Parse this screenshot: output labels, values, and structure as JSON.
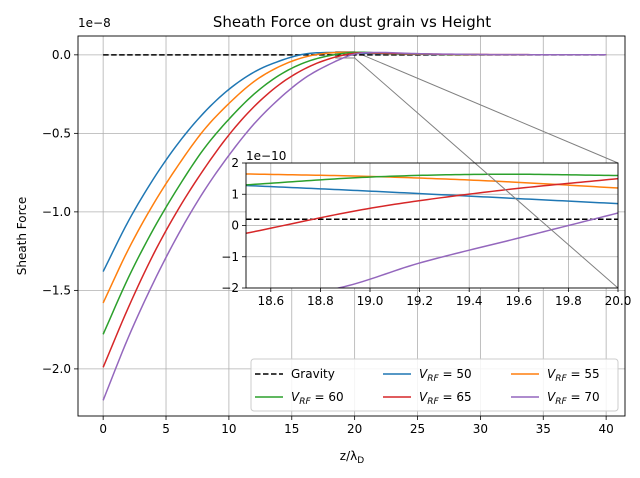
{
  "chart_data": [
    {
      "type": "line",
      "title": "Sheath Force on dust grain vs Height",
      "xlabel": "z/λD",
      "ylabel": "Sheath Force",
      "offset_text": "1e−8",
      "xlim": [
        -2,
        41.5
      ],
      "ylim": [
        -2.3,
        0.12
      ],
      "xticks": [
        0,
        5,
        10,
        15,
        20,
        25,
        30,
        35,
        40
      ],
      "xtick_labels": [
        "0",
        "5",
        "10",
        "15",
        "20",
        "25",
        "30",
        "35",
        "40"
      ],
      "yticks": [
        0,
        -0.5,
        -1.0,
        -1.5,
        -2.0
      ],
      "ytick_labels": [
        "0.0",
        "−0.5",
        "−1.0",
        "−1.5",
        "−2.0"
      ],
      "grid": true,
      "legend": {
        "placement": "lower-right",
        "columns": 3
      },
      "series": [
        {
          "name": "Gravity",
          "label_main": "Gravity",
          "label_sub": "",
          "label_tail": "",
          "color": "#000000",
          "dashed": true,
          "x": [
            0,
            40
          ],
          "y": [
            0.0,
            0.0
          ]
        },
        {
          "name": "V_RF = 50",
          "label_main": "V",
          "label_sub": "RF",
          "label_tail": " = 50",
          "color": "#1f77b4",
          "dashed": false,
          "x": [
            0,
            2,
            4,
            6,
            8,
            10,
            12,
            14,
            16,
            18,
            20,
            22,
            24,
            26,
            28,
            30,
            34,
            38,
            40
          ],
          "y": [
            -1.38,
            -1.06,
            -0.79,
            -0.56,
            -0.37,
            -0.22,
            -0.11,
            -0.04,
            0.005,
            0.015,
            0.012,
            0.008,
            0.005,
            0.003,
            0.002,
            0.001,
            0.0005,
            0.0003,
            0.0002
          ]
        },
        {
          "name": "V_RF = 55",
          "label_main": "V",
          "label_sub": "RF",
          "label_tail": " = 55",
          "color": "#ff7f0e",
          "dashed": false,
          "x": [
            0,
            2,
            4,
            6,
            8,
            10,
            12,
            14,
            16,
            18,
            20,
            22,
            24,
            26,
            28,
            30,
            34,
            38,
            40
          ],
          "y": [
            -1.58,
            -1.24,
            -0.95,
            -0.7,
            -0.48,
            -0.31,
            -0.17,
            -0.075,
            -0.015,
            0.012,
            0.015,
            0.01,
            0.006,
            0.004,
            0.002,
            0.001,
            0.0005,
            0.0003,
            0.0002
          ]
        },
        {
          "name": "V_RF = 60",
          "label_main": "V",
          "label_sub": "RF",
          "label_tail": " = 60",
          "color": "#2ca02c",
          "dashed": false,
          "x": [
            0,
            2,
            4,
            6,
            8,
            10,
            12,
            14,
            16,
            18,
            20,
            22,
            24,
            26,
            28,
            30,
            34,
            38,
            40
          ],
          "y": [
            -1.78,
            -1.42,
            -1.11,
            -0.84,
            -0.6,
            -0.41,
            -0.25,
            -0.13,
            -0.05,
            -0.005,
            0.016,
            0.012,
            0.007,
            0.004,
            0.002,
            0.001,
            0.0005,
            0.0003,
            0.0002
          ]
        },
        {
          "name": "V_RF = 65",
          "label_main": "V",
          "label_sub": "RF",
          "label_tail": " = 65",
          "color": "#d62728",
          "dashed": false,
          "x": [
            0,
            2,
            4,
            6,
            8,
            10,
            12,
            14,
            16,
            18,
            20,
            22,
            24,
            26,
            28,
            30,
            34,
            38,
            40
          ],
          "y": [
            -1.99,
            -1.61,
            -1.27,
            -0.98,
            -0.73,
            -0.51,
            -0.33,
            -0.19,
            -0.09,
            -0.025,
            0.01,
            0.012,
            0.008,
            0.005,
            0.003,
            0.002,
            0.001,
            0.0005,
            0.0003
          ]
        },
        {
          "name": "V_RF = 70",
          "label_main": "V",
          "label_sub": "RF",
          "label_tail": " = 70",
          "color": "#9467bd",
          "dashed": false,
          "x": [
            0,
            2,
            4,
            6,
            8,
            10,
            12,
            14,
            16,
            18,
            20,
            22,
            24,
            26,
            28,
            30,
            34,
            38,
            40
          ],
          "y": [
            -2.2,
            -1.8,
            -1.45,
            -1.14,
            -0.87,
            -0.64,
            -0.44,
            -0.28,
            -0.15,
            -0.06,
            0.005,
            0.015,
            0.01,
            0.006,
            0.004,
            0.002,
            0.001,
            0.0005,
            0.0003
          ]
        }
      ]
    },
    {
      "type": "line",
      "title": "",
      "offset_text": "1e−10",
      "xlim": [
        18.5,
        20.0
      ],
      "ylim": [
        -2,
        2
      ],
      "xticks": [
        18.6,
        18.8,
        19.0,
        19.2,
        19.4,
        19.6,
        19.8,
        20.0
      ],
      "xtick_labels": [
        "18.6",
        "18.8",
        "19.0",
        "19.2",
        "19.4",
        "19.6",
        "19.8",
        "20.0"
      ],
      "yticks": [
        2,
        1,
        0,
        -1,
        -2
      ],
      "ytick_labels": [
        "2",
        "1",
        "0",
        "−1",
        "−2"
      ],
      "grid": true,
      "zoom_region_in_main": {
        "x": [
          18.5,
          20.0
        ],
        "y": [
          -0.02,
          0.02
        ]
      },
      "series": [
        {
          "name": "Gravity",
          "color": "#000000",
          "dashed": true,
          "x": [
            18.5,
            20.0
          ],
          "y": [
            0.2,
            0.2
          ]
        },
        {
          "name": "V_RF = 50",
          "color": "#1f77b4",
          "dashed": false,
          "x": [
            18.5,
            19.0,
            19.5,
            20.0
          ],
          "y": [
            1.28,
            1.1,
            0.9,
            0.7
          ]
        },
        {
          "name": "V_RF = 55",
          "color": "#ff7f0e",
          "dashed": false,
          "x": [
            18.5,
            19.0,
            19.5,
            20.0
          ],
          "y": [
            1.65,
            1.57,
            1.42,
            1.2
          ]
        },
        {
          "name": "V_RF = 60",
          "color": "#2ca02c",
          "dashed": false,
          "x": [
            18.5,
            19.0,
            19.5,
            20.0
          ],
          "y": [
            1.3,
            1.55,
            1.64,
            1.6
          ]
        },
        {
          "name": "V_RF = 65",
          "color": "#d62728",
          "dashed": false,
          "x": [
            18.5,
            19.0,
            19.5,
            20.0
          ],
          "y": [
            -0.25,
            0.55,
            1.1,
            1.5
          ]
        },
        {
          "name": "V_RF = 70",
          "color": "#9467bd",
          "dashed": false,
          "x": [
            18.5,
            18.9,
            19.2,
            19.6,
            20.0
          ],
          "y": [
            -2.55,
            -1.95,
            -1.2,
            -0.4,
            0.4
          ]
        }
      ]
    }
  ]
}
